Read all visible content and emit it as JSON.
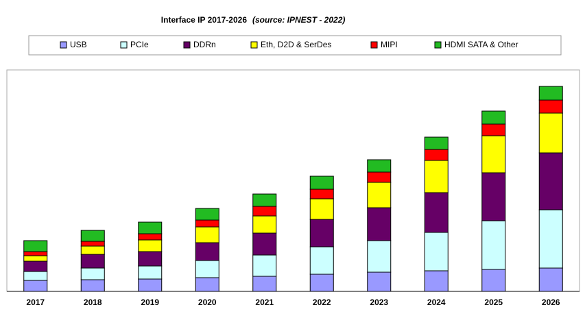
{
  "chart_data": {
    "type": "stacked_bar",
    "title": "Interface IP  2017-2026",
    "subtitle": "(source: IPNEST - 2022)",
    "categories": [
      "2017",
      "2018",
      "2019",
      "2020",
      "2021",
      "2022",
      "2023",
      "2024",
      "2025",
      "2026"
    ],
    "series": [
      {
        "name": "USB",
        "color": "#9999ff",
        "values": [
          16,
          17,
          18,
          20,
          22,
          25,
          28,
          30,
          32,
          34
        ]
      },
      {
        "name": "PCIe",
        "color": "#ccffff",
        "values": [
          13,
          17,
          19,
          25,
          31,
          40,
          46,
          56,
          71,
          85
        ]
      },
      {
        "name": "DDRn",
        "color": "#660066",
        "values": [
          15,
          20,
          21,
          26,
          32,
          40,
          48,
          58,
          70,
          83
        ]
      },
      {
        "name": "Eth, D2D & SerDes",
        "color": "#ffff00",
        "values": [
          8,
          12,
          17,
          23,
          25,
          30,
          37,
          47,
          54,
          58
        ]
      },
      {
        "name": "MIPI",
        "color": "#ff0000",
        "values": [
          6,
          7,
          9,
          10,
          14,
          14,
          15,
          16,
          17,
          19
        ]
      },
      {
        "name": "HDMI SATA & Other",
        "color": "#22bb22",
        "values": [
          16,
          16,
          17,
          17,
          18,
          19,
          18,
          18,
          19,
          20
        ]
      }
    ]
  }
}
